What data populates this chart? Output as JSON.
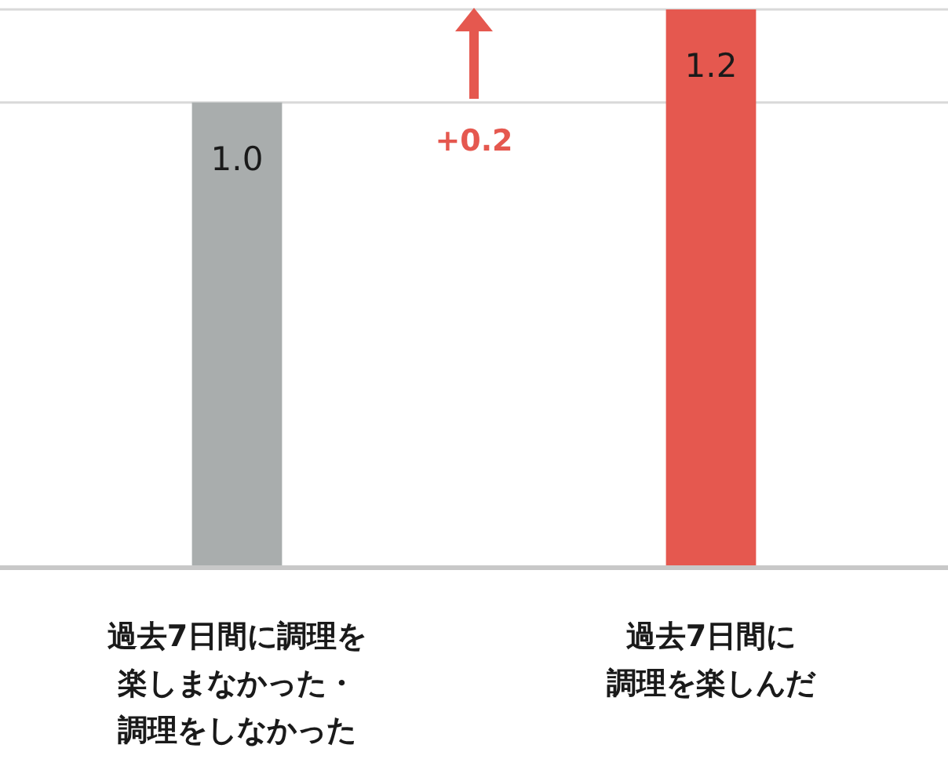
{
  "chart_data": {
    "type": "bar",
    "categories": [
      "過去7日間に調理を楽しまなかった・調理をしなかった",
      "過去7日間に調理を楽しんだ"
    ],
    "values": [
      1.0,
      1.2
    ],
    "value_labels": [
      "1.0",
      "1.2"
    ],
    "colors": [
      "#a9adad",
      "#e5584f"
    ],
    "ylim": [
      0,
      1.2
    ],
    "ref_lines": [
      {
        "axis": "y",
        "value": 1,
        "color": "#d9d9d9"
      },
      {
        "axis": "y",
        "value": 1.2,
        "color": "#d9d9d9"
      }
    ],
    "tick_labels": "x",
    "annotations": [
      "+0.2"
    ]
  }
}
